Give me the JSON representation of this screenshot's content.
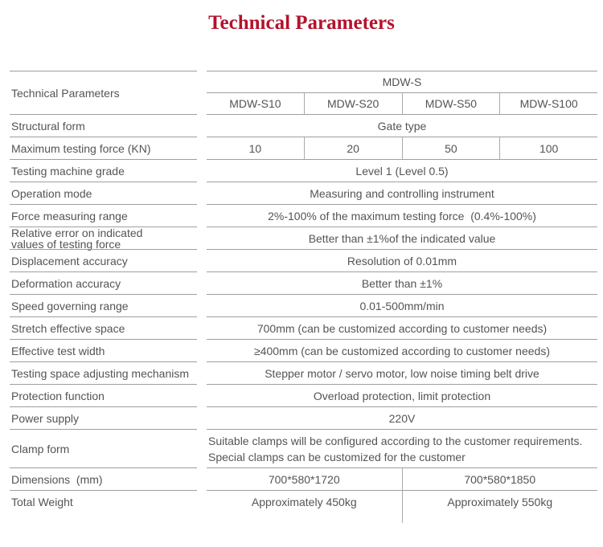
{
  "page": {
    "title": "Technical Parameters"
  },
  "colors": {
    "title_red": "#b4122c",
    "body_text": "#545454",
    "grid_line": "#9e9e9e"
  },
  "table": {
    "header": {
      "left_label": "Technical Parameters",
      "series_label": "MDW-S",
      "models": [
        "MDW-S10",
        "MDW-S20",
        "MDW-S50",
        "MDW-S100"
      ]
    },
    "rows": [
      {
        "label": "Structural form",
        "value": "Gate type"
      },
      {
        "label": "Maximum testing force (KN)",
        "values": [
          "10",
          "20",
          "50",
          "100"
        ]
      },
      {
        "label": "Testing machine grade",
        "value": "Level 1 (Level 0.5)"
      },
      {
        "label": "Operation mode",
        "value": "Measuring and controlling instrument"
      },
      {
        "label": "Force measuring range",
        "value": "2%-100% of the maximum testing force  (0.4%-100%)"
      },
      {
        "label": "Relative error on indicated values of testing force",
        "value": "Better than ±1%of the indicated value"
      },
      {
        "label": "Displacement accuracy",
        "value": "Resolution of 0.01mm"
      },
      {
        "label": "Deformation accuracy",
        "value": "Better than ±1%"
      },
      {
        "label": "Speed governing range",
        "value": "0.01-500mm/min"
      },
      {
        "label": "Stretch effective space",
        "value": "700mm (can be customized according to customer needs)"
      },
      {
        "label": "Effective test width",
        "value": "≥400mm (can be customized according to customer needs)"
      },
      {
        "label": "Testing space adjusting mechanism",
        "value": "Stepper motor / servo motor, low noise timing belt drive"
      },
      {
        "label": "Protection function",
        "value": "Overload protection, limit protection"
      },
      {
        "label": "Power supply",
        "value": "220V"
      },
      {
        "label": "Clamp form",
        "value": "Suitable clamps will be configured according to the customer requirements.\nSpecial clamps can be customized for the customer"
      },
      {
        "label": "Dimensions  (mm)",
        "values": [
          "700*580*1720",
          "700*580*1850"
        ]
      },
      {
        "label": "Total Weight",
        "values": [
          "Approximately 450kg",
          "Approximately 550kg"
        ]
      }
    ]
  }
}
